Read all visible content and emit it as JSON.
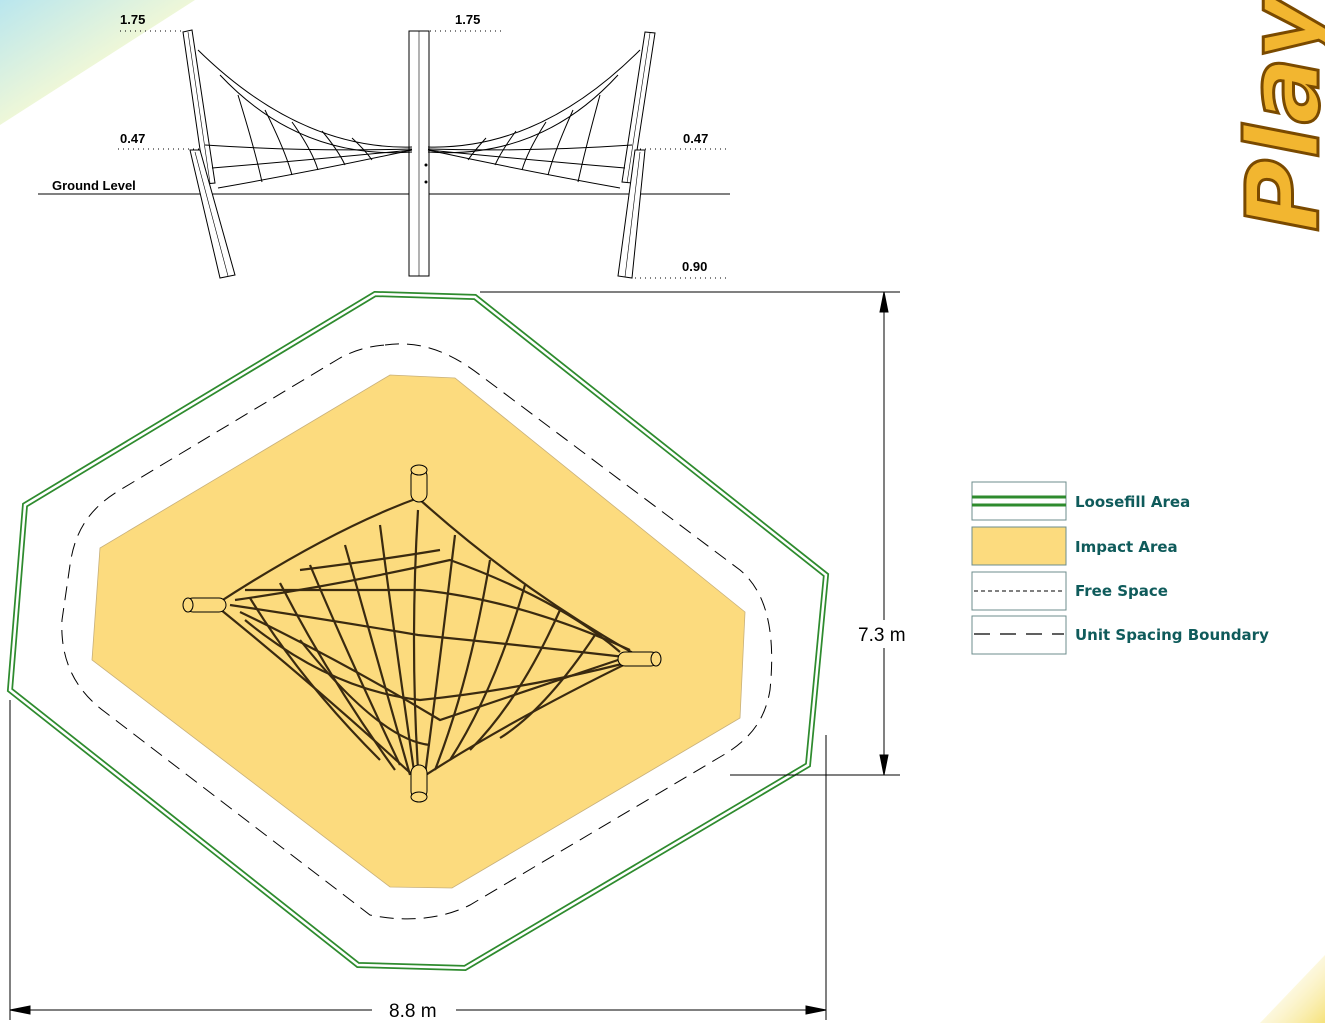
{
  "elevation": {
    "ground_label": "Ground Level",
    "top_left_height": "1.75",
    "top_center_height": "1.75",
    "mid_left_height": "0.47",
    "mid_right_height": "0.47",
    "depth_right": "0.90"
  },
  "plan": {
    "height_dimension": "7.3 m",
    "width_dimension": "8.8 m"
  },
  "legend": {
    "loosefill": "Loosefill Area",
    "impact": "Impact Area",
    "free_space": "Free Space",
    "unit_spacing": "Unit Spacing Boundary"
  },
  "brand": {
    "logo_text": "Playa"
  },
  "colors": {
    "impact_fill": "#fcdb7e",
    "loosefill_line": "#2e8b2e",
    "legend_text": "#0f5b5b",
    "net_rope": "#3a2a10",
    "logo_fill": "#f2b630",
    "corner_accent": "#f7e58a"
  }
}
